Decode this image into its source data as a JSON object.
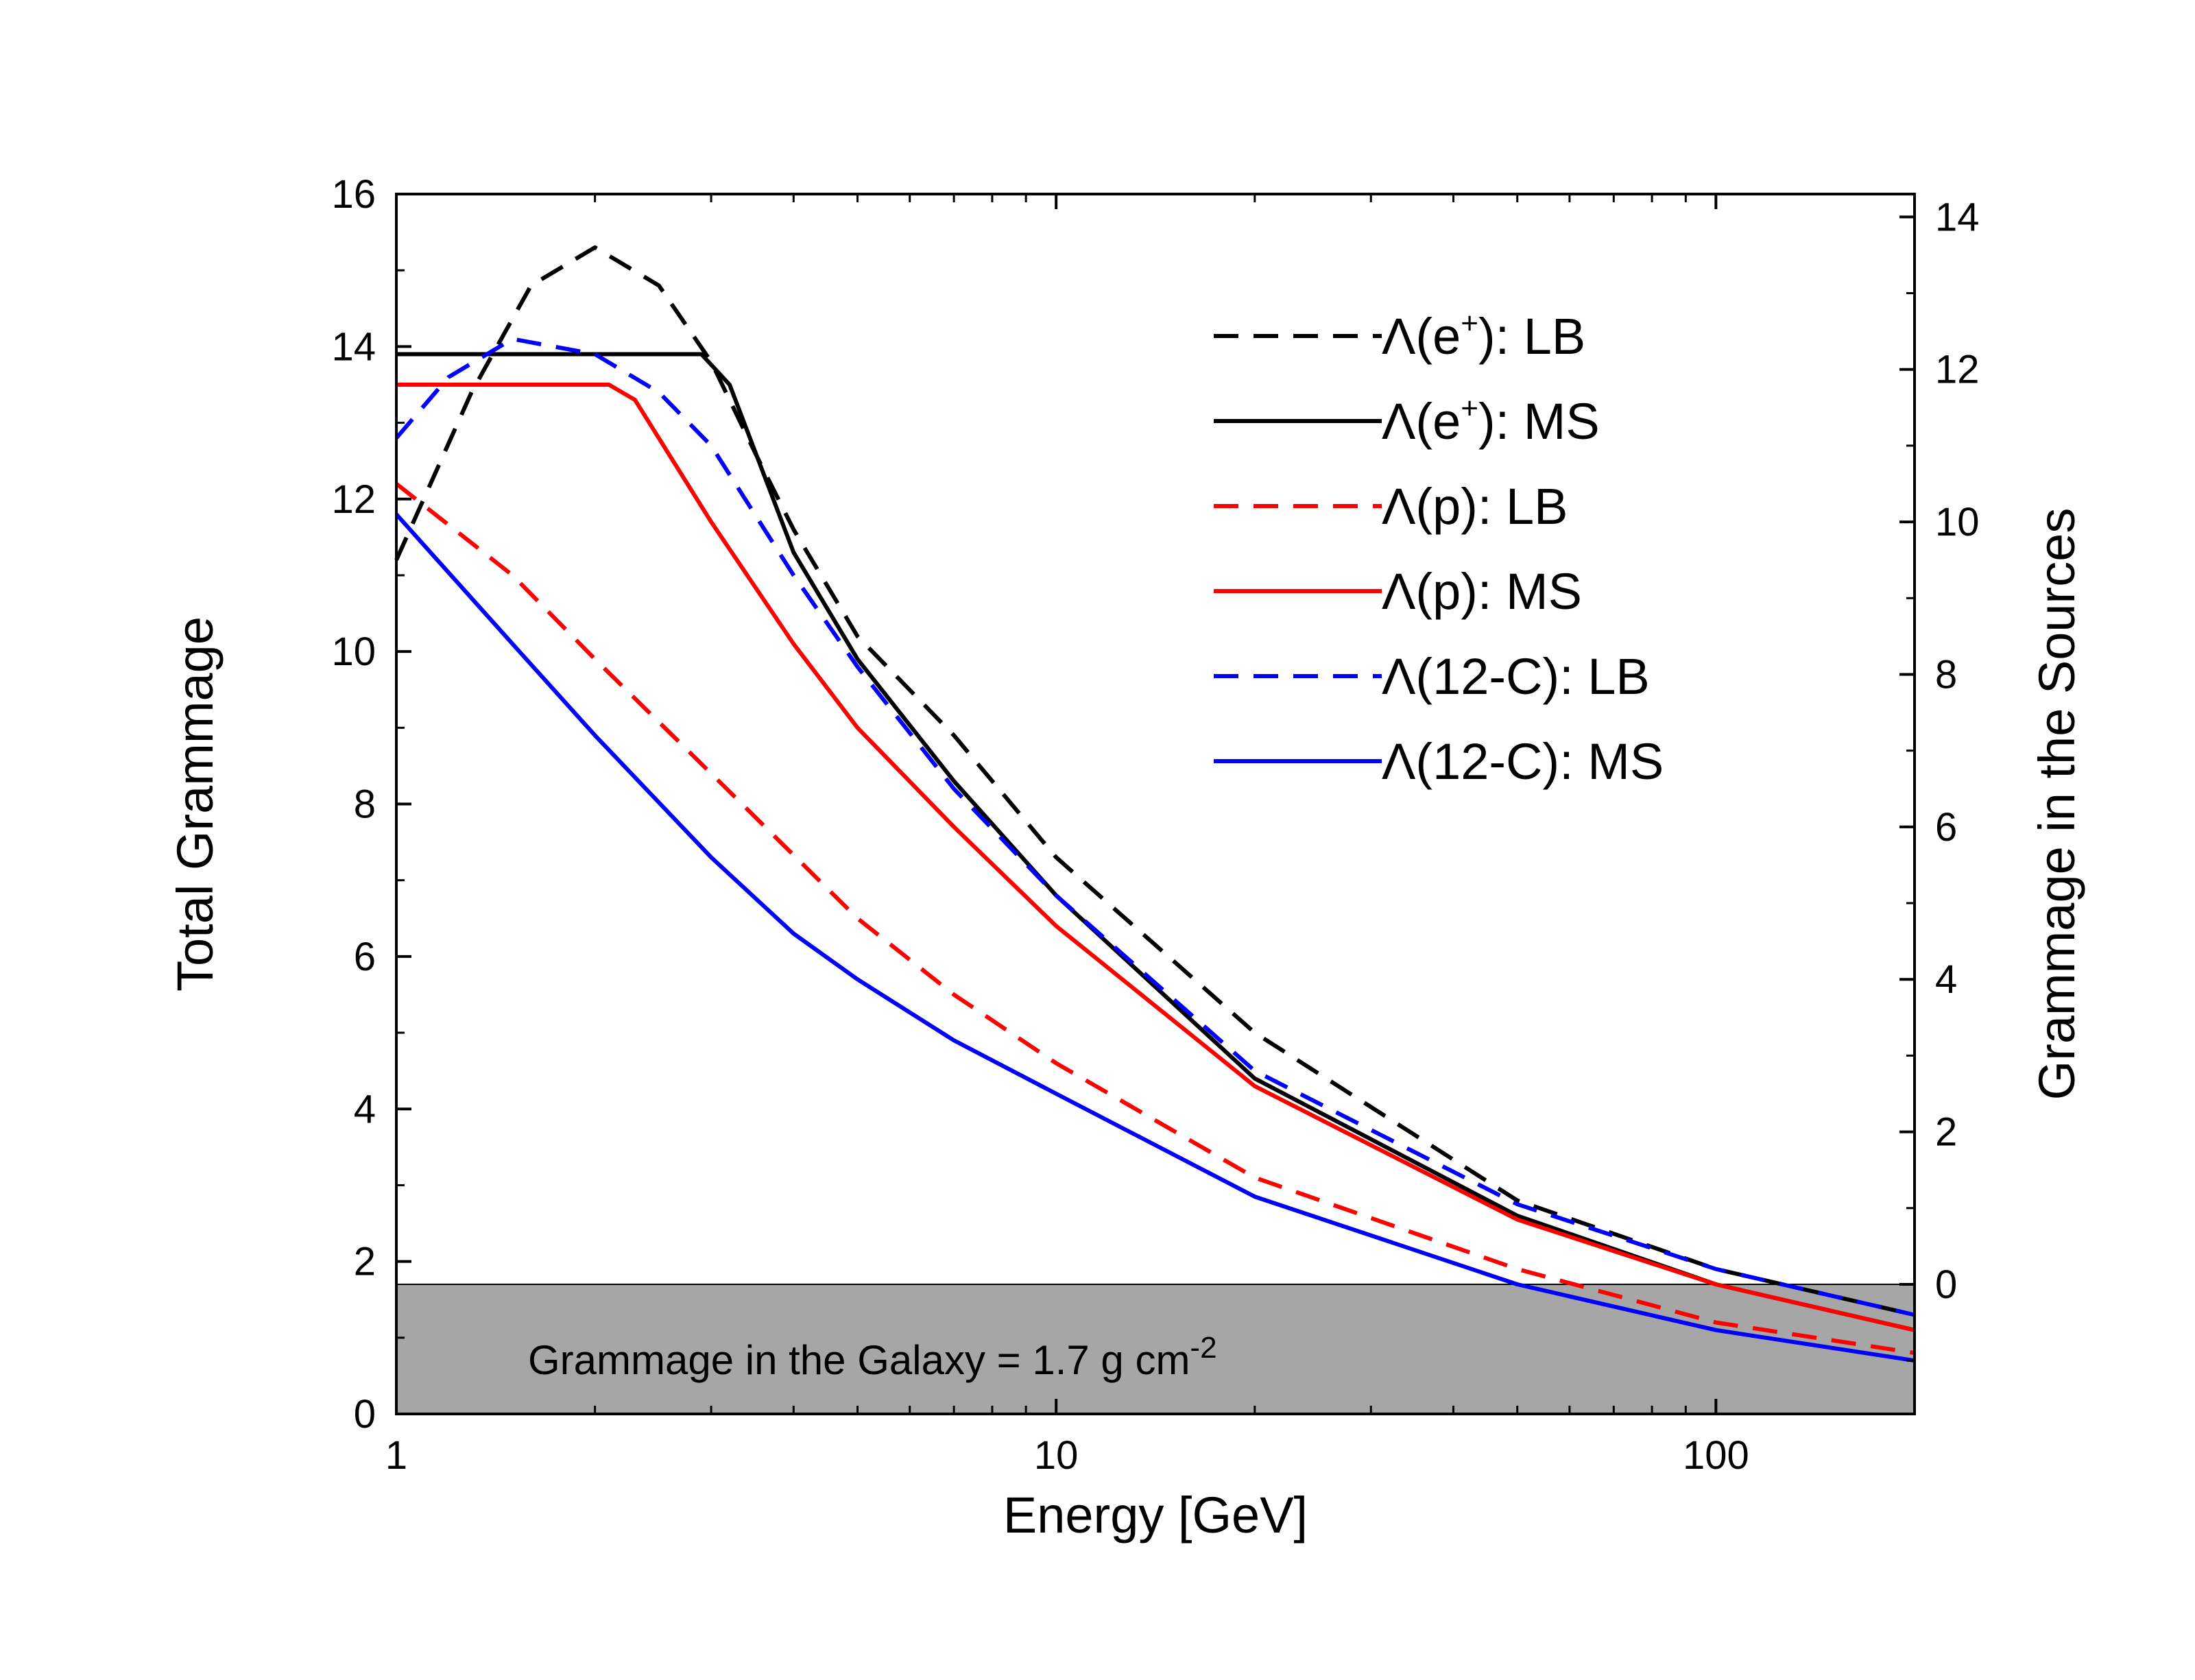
{
  "chart_data": {
    "type": "line",
    "xscale": "log",
    "xlabel": "Energy [GeV]",
    "ylabel": "Total Grammage",
    "y2label": "Grammage in the Sources",
    "xlim": [
      1,
      200
    ],
    "ylim": [
      0,
      16
    ],
    "y2lim": [
      -1.7,
      14.3
    ],
    "x_ticks": [
      1,
      10,
      100
    ],
    "x_tick_labels": [
      "1",
      "10",
      "100"
    ],
    "y_ticks": [
      0,
      2,
      4,
      6,
      8,
      10,
      12,
      14,
      16
    ],
    "y_tick_labels": [
      "0",
      "2",
      "4",
      "6",
      "8",
      "10",
      "12",
      "14",
      "16"
    ],
    "y2_ticks": [
      0,
      2,
      4,
      6,
      8,
      10,
      12,
      14
    ],
    "y2_tick_labels": [
      "0",
      "2",
      "4",
      "6",
      "8",
      "10",
      "12",
      "14"
    ],
    "band": {
      "y": 1.7,
      "color": "#a6a6a6",
      "label": "Grammage in the Galaxy = 1.7 g cm",
      "label_sup": "-2"
    },
    "legend": {
      "placement": "top-right"
    },
    "series": [
      {
        "name": "Λ(e⁺): LB",
        "legend_prefix": "Λ(e",
        "legend_sup": "+",
        "legend_suffix": "): LB",
        "color": "#000000",
        "dash": "dashed",
        "x": [
          1,
          1.3,
          1.6,
          2,
          2.5,
          3,
          3.5,
          4,
          5,
          7,
          10,
          20,
          50,
          100,
          200
        ],
        "y": [
          11.2,
          13.4,
          14.8,
          15.3,
          14.8,
          13.8,
          12.6,
          11.6,
          10.2,
          8.9,
          7.3,
          5.0,
          2.8,
          1.9,
          1.3
        ]
      },
      {
        "name": "Λ(e⁺): MS",
        "legend_prefix": "Λ(e",
        "legend_sup": "+",
        "legend_suffix": "): MS",
        "color": "#000000",
        "dash": "solid",
        "x": [
          1,
          2.9,
          3.2,
          4,
          5,
          7,
          10,
          20,
          50,
          100,
          200
        ],
        "y": [
          13.9,
          13.9,
          13.5,
          11.3,
          9.9,
          8.3,
          6.8,
          4.4,
          2.6,
          1.7,
          1.1
        ]
      },
      {
        "name": "Λ(p): LB",
        "legend_prefix": "Λ(p): LB",
        "legend_sup": "",
        "legend_suffix": "",
        "color": "#ff0000",
        "dash": "dashed",
        "x": [
          1,
          1.5,
          2,
          3,
          5,
          7,
          10,
          20,
          50,
          100,
          200
        ],
        "y": [
          12.2,
          11.0,
          9.9,
          8.4,
          6.5,
          5.5,
          4.6,
          3.1,
          1.9,
          1.2,
          0.8
        ]
      },
      {
        "name": "Λ(p): MS",
        "legend_prefix": "Λ(p): MS",
        "legend_sup": "",
        "legend_suffix": "",
        "color": "#ff0000",
        "dash": "solid",
        "x": [
          1,
          2.1,
          2.3,
          3,
          4,
          5,
          7,
          10,
          20,
          50,
          100,
          200
        ],
        "y": [
          13.5,
          13.5,
          13.3,
          11.7,
          10.1,
          9.0,
          7.7,
          6.4,
          4.3,
          2.55,
          1.7,
          1.1
        ]
      },
      {
        "name": "Λ(12-C): LB",
        "legend_prefix": "Λ(12-C): LB",
        "legend_sup": "",
        "legend_suffix": "",
        "color": "#0000ff",
        "dash": "dashed",
        "x": [
          1,
          1.2,
          1.5,
          2,
          2.5,
          3,
          4,
          5,
          7,
          10,
          20,
          50,
          100,
          200
        ],
        "y": [
          12.8,
          13.6,
          14.1,
          13.9,
          13.4,
          12.7,
          11.0,
          9.8,
          8.2,
          6.8,
          4.5,
          2.75,
          1.9,
          1.3
        ]
      },
      {
        "name": "Λ(12-C): MS",
        "legend_prefix": "Λ(12-C): MS",
        "legend_sup": "",
        "legend_suffix": "",
        "color": "#0000ff",
        "dash": "solid",
        "x": [
          1,
          1.5,
          2,
          3,
          4,
          5,
          7,
          10,
          20,
          50,
          100,
          200
        ],
        "y": [
          11.8,
          10.1,
          8.9,
          7.3,
          6.3,
          5.7,
          4.9,
          4.2,
          2.85,
          1.7,
          1.1,
          0.7
        ]
      }
    ]
  }
}
